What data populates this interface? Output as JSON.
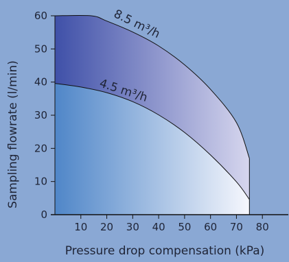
{
  "chart_data": {
    "type": "area",
    "xlabel": "Pressure drop compensation (kPa)",
    "ylabel": "Sampling flowrate  (l/min)",
    "xlim": [
      0,
      90
    ],
    "ylim": [
      0,
      60
    ],
    "x_ticks": [
      10,
      20,
      30,
      40,
      50,
      60,
      70,
      80
    ],
    "y_ticks": [
      0,
      10,
      20,
      30,
      40,
      50,
      60
    ],
    "grid": false,
    "colors": {
      "background": "#8aa8d4",
      "region_top_left": "#3f50a8",
      "region_top_right": "#d6d6ee",
      "region_bottom_left": "#4f86c8",
      "region_bottom_right": "#f6f7fd",
      "line": "#111111"
    },
    "series": [
      {
        "name": "8.5 m³/h",
        "x": [
          0,
          14,
          20,
          30,
          40,
          50,
          60,
          70,
          75
        ],
        "y": [
          60,
          60,
          58.4,
          55.1,
          50.9,
          45.2,
          37.8,
          27.8,
          17
        ]
      },
      {
        "name": "4.5 m³/h",
        "x": [
          0,
          10,
          20,
          30,
          40,
          50,
          60,
          70,
          75
        ],
        "y": [
          39.6,
          38.5,
          36.8,
          34.1,
          30.1,
          24.8,
          18.0,
          9.9,
          4.6
        ]
      }
    ],
    "annotations": [
      {
        "text": "8.5 m³/h",
        "series": 0
      },
      {
        "text": "4.5 m³/h",
        "series": 1
      }
    ]
  }
}
